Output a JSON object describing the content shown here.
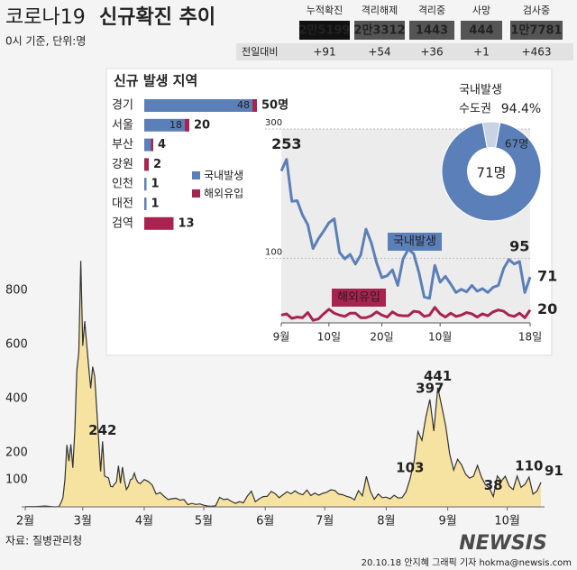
{
  "header": {
    "title_light": "코로나19",
    "title_bold": "신규확진 추이",
    "subtitle": "0시 기준, 단위:명"
  },
  "stats": {
    "columns": [
      "누적확진",
      "격리해제",
      "격리중",
      "사망",
      "검사중"
    ],
    "totals": [
      "2만5199",
      "2만3312",
      "1443",
      "444",
      "1만7781"
    ],
    "change_label": "전일대비",
    "changes": [
      "+91",
      "+54",
      "+36",
      "+1",
      "+463"
    ]
  },
  "footer": {
    "source": "자료: 질병관리청",
    "credit": "20.10.18 안지혜 그래픽 기자 hokma@newsis.com",
    "watermark": "NEWSIS"
  },
  "chart_data": [
    {
      "type": "area",
      "color": "#f7e3a1",
      "line_color": "#333333",
      "x": [
        0,
        5,
        10,
        15,
        17,
        18,
        19,
        20,
        21,
        22,
        23,
        24,
        25,
        26,
        27,
        28,
        29,
        30,
        31,
        32,
        33,
        34,
        35,
        36,
        37,
        38,
        39,
        40,
        41,
        42,
        43,
        44,
        45,
        46,
        47,
        48,
        49,
        50,
        51,
        52,
        53,
        54,
        55,
        56,
        57,
        58,
        60,
        62,
        64,
        66,
        68,
        70,
        72,
        74,
        76,
        78,
        80,
        82,
        84,
        86,
        88,
        90,
        92,
        94,
        96,
        98,
        100,
        102,
        104,
        106,
        108,
        110,
        112,
        114,
        116,
        118,
        120,
        122,
        124,
        126,
        128,
        130,
        132,
        134,
        136,
        138,
        140,
        142,
        144,
        146,
        148,
        150,
        152,
        154,
        156,
        158,
        160,
        162,
        164,
        166,
        168,
        170,
        172,
        174,
        176,
        178,
        180,
        182,
        184,
        186,
        188,
        190,
        192,
        194,
        196,
        198,
        200,
        202,
        204,
        206,
        208,
        210,
        212,
        214,
        216,
        218,
        220,
        222,
        224,
        226,
        228,
        230,
        232,
        234,
        236,
        238,
        240,
        242,
        244,
        246,
        248,
        250,
        252,
        254,
        256,
        258,
        260
      ],
      "values": [
        1,
        1,
        3,
        0,
        1,
        15,
        34,
        100,
        229,
        169,
        231,
        144,
        284,
        505,
        571,
        909,
        595,
        686,
        600,
        516,
        438,
        518,
        483,
        367,
        248,
        131,
        242,
        114,
        110,
        107,
        76,
        74,
        84,
        93,
        152,
        87,
        147,
        98,
        64,
        76,
        100,
        104,
        125,
        101,
        89,
        86,
        101,
        94,
        81,
        47,
        53,
        39,
        27,
        30,
        32,
        25,
        27,
        8,
        13,
        9,
        11,
        6,
        3,
        2,
        4,
        35,
        27,
        29,
        20,
        13,
        19,
        15,
        40,
        58,
        19,
        30,
        38,
        39,
        57,
        49,
        34,
        45,
        56,
        48,
        59,
        49,
        45,
        62,
        42,
        51,
        43,
        50,
        54,
        63,
        61,
        47,
        45,
        39,
        35,
        26,
        60,
        41,
        113,
        58,
        28,
        48,
        34,
        36,
        30,
        43,
        33,
        34,
        56,
        103,
        166,
        279,
        246,
        332,
        397,
        280,
        441,
        371,
        299,
        195,
        136,
        176,
        155,
        121,
        106,
        113,
        153,
        110,
        82,
        70,
        38,
        114,
        95,
        113,
        77,
        64,
        114,
        72,
        84,
        110,
        47,
        58,
        91
      ],
      "value_labels": [
        null,
        null,
        null,
        null,
        null,
        null,
        null,
        null,
        null,
        null,
        null,
        null,
        null,
        null,
        null,
        null,
        null,
        null,
        null,
        null,
        null,
        null,
        null,
        null,
        null,
        null,
        "242",
        null,
        null,
        null,
        null,
        null,
        null,
        null,
        null,
        null,
        null,
        null,
        null,
        null,
        null,
        null,
        null,
        null,
        null,
        null,
        null,
        null,
        null,
        null,
        null,
        null,
        null,
        null,
        null,
        null,
        null,
        null,
        null,
        null,
        null,
        null,
        null,
        null,
        null,
        null,
        null,
        null,
        null,
        null,
        null,
        null,
        null,
        null,
        null,
        null,
        null,
        null,
        null,
        null,
        null,
        null,
        null,
        null,
        null,
        null,
        null,
        null,
        null,
        null,
        null,
        null,
        null,
        null,
        null,
        null,
        null,
        null,
        null,
        null,
        null,
        null,
        null,
        null,
        null,
        null,
        null,
        null,
        null,
        null,
        null,
        null,
        null,
        "103",
        null,
        null,
        null,
        null,
        "397",
        null,
        "441",
        null,
        null,
        null,
        null,
        null,
        null,
        null,
        null,
        null,
        null,
        null,
        null,
        null,
        "38",
        null,
        null,
        null,
        null,
        null,
        null,
        null,
        null,
        "110",
        null,
        null,
        "91"
      ],
      "xlim": [
        0,
        260
      ],
      "xticks": [
        {
          "value": 0,
          "label": "2월"
        },
        {
          "value": 29,
          "label": "3월"
        },
        {
          "value": 60,
          "label": "4월"
        },
        {
          "value": 90,
          "label": "5월"
        },
        {
          "value": 121,
          "label": "6월"
        },
        {
          "value": 151,
          "label": "7월"
        },
        {
          "value": 182,
          "label": "8월"
        },
        {
          "value": 213,
          "label": "9월"
        },
        {
          "value": 243,
          "label": "10월"
        }
      ],
      "ylim": [
        0,
        920
      ],
      "yticks": [
        100,
        200,
        400,
        600,
        800
      ]
    },
    {
      "type": "hbar-stacked",
      "title": "신규 발생 지역",
      "categories": [
        "경기",
        "서울",
        "부산",
        "강원",
        "인천",
        "대전",
        "검역"
      ],
      "series": [
        {
          "name": "국내발생",
          "color": "#5b7fb8",
          "values": [
            48,
            18,
            3,
            0,
            1,
            1,
            0
          ],
          "value_labels": [
            "48",
            "18",
            null,
            null,
            null,
            null,
            null
          ]
        },
        {
          "name": "해외유입",
          "color": "#a8234f",
          "values": [
            2,
            2,
            1,
            2,
            0,
            0,
            13
          ]
        }
      ],
      "total_labels": [
        "50명",
        "20",
        "4",
        "2",
        "1",
        "1",
        "13"
      ]
    },
    {
      "type": "line",
      "x": [
        0,
        1,
        2,
        3,
        4,
        5,
        6,
        7,
        8,
        9,
        10,
        11,
        12,
        13,
        14,
        15,
        16,
        17,
        18,
        19,
        20,
        21,
        22,
        23,
        24,
        25,
        26,
        27,
        28,
        29,
        30,
        31,
        32,
        33,
        34,
        35,
        36,
        37,
        38,
        39,
        40,
        41,
        42,
        43,
        44,
        45,
        46,
        47
      ],
      "series": [
        {
          "name": "국내발생",
          "color": "#5b7fb8",
          "values": [
            235,
            253,
            188,
            189,
            167,
            152,
            115,
            130,
            142,
            155,
            161,
            109,
            99,
            106,
            91,
            105,
            145,
            124,
            93,
            70,
            73,
            82,
            58,
            99,
            114,
            107,
            78,
            40,
            38,
            89,
            63,
            72,
            60,
            47,
            52,
            48,
            58,
            49,
            53,
            47,
            55,
            58,
            84,
            98,
            91,
            95,
            47,
            71
          ],
          "value_labels": [
            null,
            "253",
            null,
            null,
            null,
            null,
            null,
            null,
            null,
            null,
            null,
            null,
            null,
            null,
            null,
            null,
            null,
            null,
            null,
            null,
            null,
            null,
            null,
            null,
            null,
            null,
            null,
            null,
            null,
            null,
            null,
            null,
            null,
            null,
            null,
            null,
            null,
            null,
            null,
            null,
            null,
            null,
            null,
            null,
            null,
            "95",
            null,
            "71"
          ]
        },
        {
          "name": "해외유입",
          "color": "#a8234f",
          "values": [
            12,
            14,
            7,
            9,
            8,
            16,
            4,
            6,
            14,
            21,
            15,
            12,
            10,
            15,
            15,
            8,
            8,
            11,
            17,
            12,
            9,
            17,
            12,
            11,
            11,
            18,
            17,
            10,
            12,
            24,
            14,
            9,
            15,
            10,
            12,
            16,
            14,
            9,
            14,
            11,
            17,
            20,
            18,
            12,
            10,
            15,
            8,
            20
          ],
          "value_labels": [
            null,
            null,
            null,
            null,
            null,
            null,
            null,
            null,
            null,
            null,
            null,
            null,
            null,
            null,
            null,
            null,
            null,
            null,
            null,
            null,
            null,
            null,
            null,
            null,
            null,
            null,
            null,
            null,
            null,
            null,
            null,
            null,
            null,
            null,
            null,
            null,
            null,
            null,
            null,
            null,
            null,
            null,
            null,
            null,
            null,
            null,
            null,
            "20"
          ]
        }
      ],
      "xlim": [
        0,
        47
      ],
      "xticks": [
        {
          "value": 0,
          "label": "9월"
        },
        {
          "value": 9,
          "label": "10일"
        },
        {
          "value": 19,
          "label": "20일"
        },
        {
          "value": 30,
          "label": "10월"
        },
        {
          "value": 47,
          "label": "18일"
        }
      ],
      "ylim": [
        0,
        300
      ],
      "yticks": [
        100,
        300
      ]
    },
    {
      "type": "pie",
      "title": "국내발생",
      "subtitle": "수도권",
      "highlight": "94.4%",
      "categories": [
        null,
        null
      ],
      "values": [
        67,
        4
      ],
      "colors": [
        "#5b7fb8",
        "#c9d3e3"
      ],
      "value_labels": [
        "67명",
        null
      ],
      "center_label": "71명"
    }
  ]
}
